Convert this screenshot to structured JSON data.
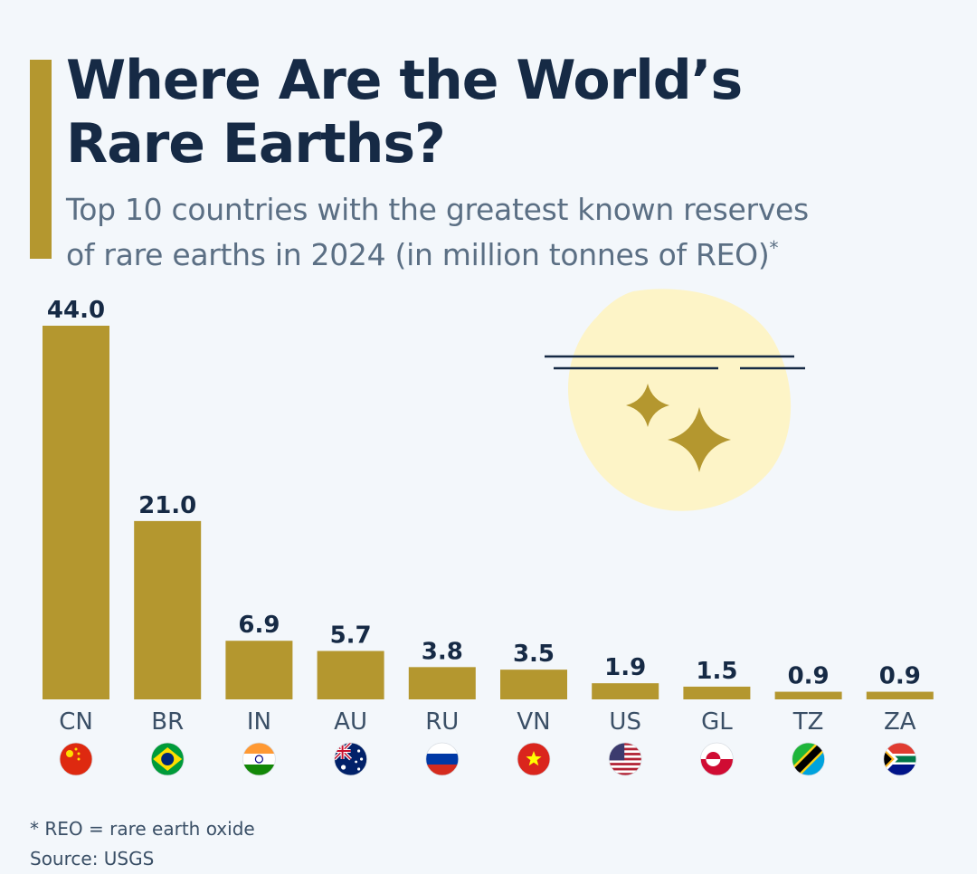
{
  "header": {
    "title_line1": "Where Are the World’s",
    "title_line2": "Rare Earths?",
    "subtitle_line1": "Top 10 countries with the greatest known reserves",
    "subtitle_line2": "of rare earths in 2024 (in million tonnes of REO)",
    "subtitle_mark": "*"
  },
  "footer": {
    "note": "* REO = rare earth oxide",
    "source": "Source: USGS"
  },
  "colors": {
    "bar": "#b4972f",
    "title": "#162a45",
    "blob": "#fdf4c7",
    "background": "#f3f7fb"
  },
  "chart_data": {
    "type": "bar",
    "title": "Top 10 countries with the greatest known reserves of rare earths in 2024 (in million tonnes of REO)",
    "categories": [
      "CN",
      "BR",
      "IN",
      "AU",
      "RU",
      "VN",
      "US",
      "GL",
      "TZ",
      "ZA"
    ],
    "values": [
      44.0,
      21.0,
      6.9,
      5.7,
      3.8,
      3.5,
      1.9,
      1.5,
      0.9,
      0.9
    ],
    "value_labels": [
      "44.0",
      "21.0",
      "6.9",
      "5.7",
      "3.8",
      "3.5",
      "1.9",
      "1.5",
      "0.9",
      "0.9"
    ],
    "flags": [
      "china-flag-icon",
      "brazil-flag-icon",
      "india-flag-icon",
      "australia-flag-icon",
      "russia-flag-icon",
      "vietnam-flag-icon",
      "usa-flag-icon",
      "greenland-flag-icon",
      "tanzania-flag-icon",
      "south-africa-flag-icon"
    ],
    "ylim": [
      0,
      44.0
    ],
    "xlabel": "",
    "ylabel": "",
    "grid": false
  }
}
